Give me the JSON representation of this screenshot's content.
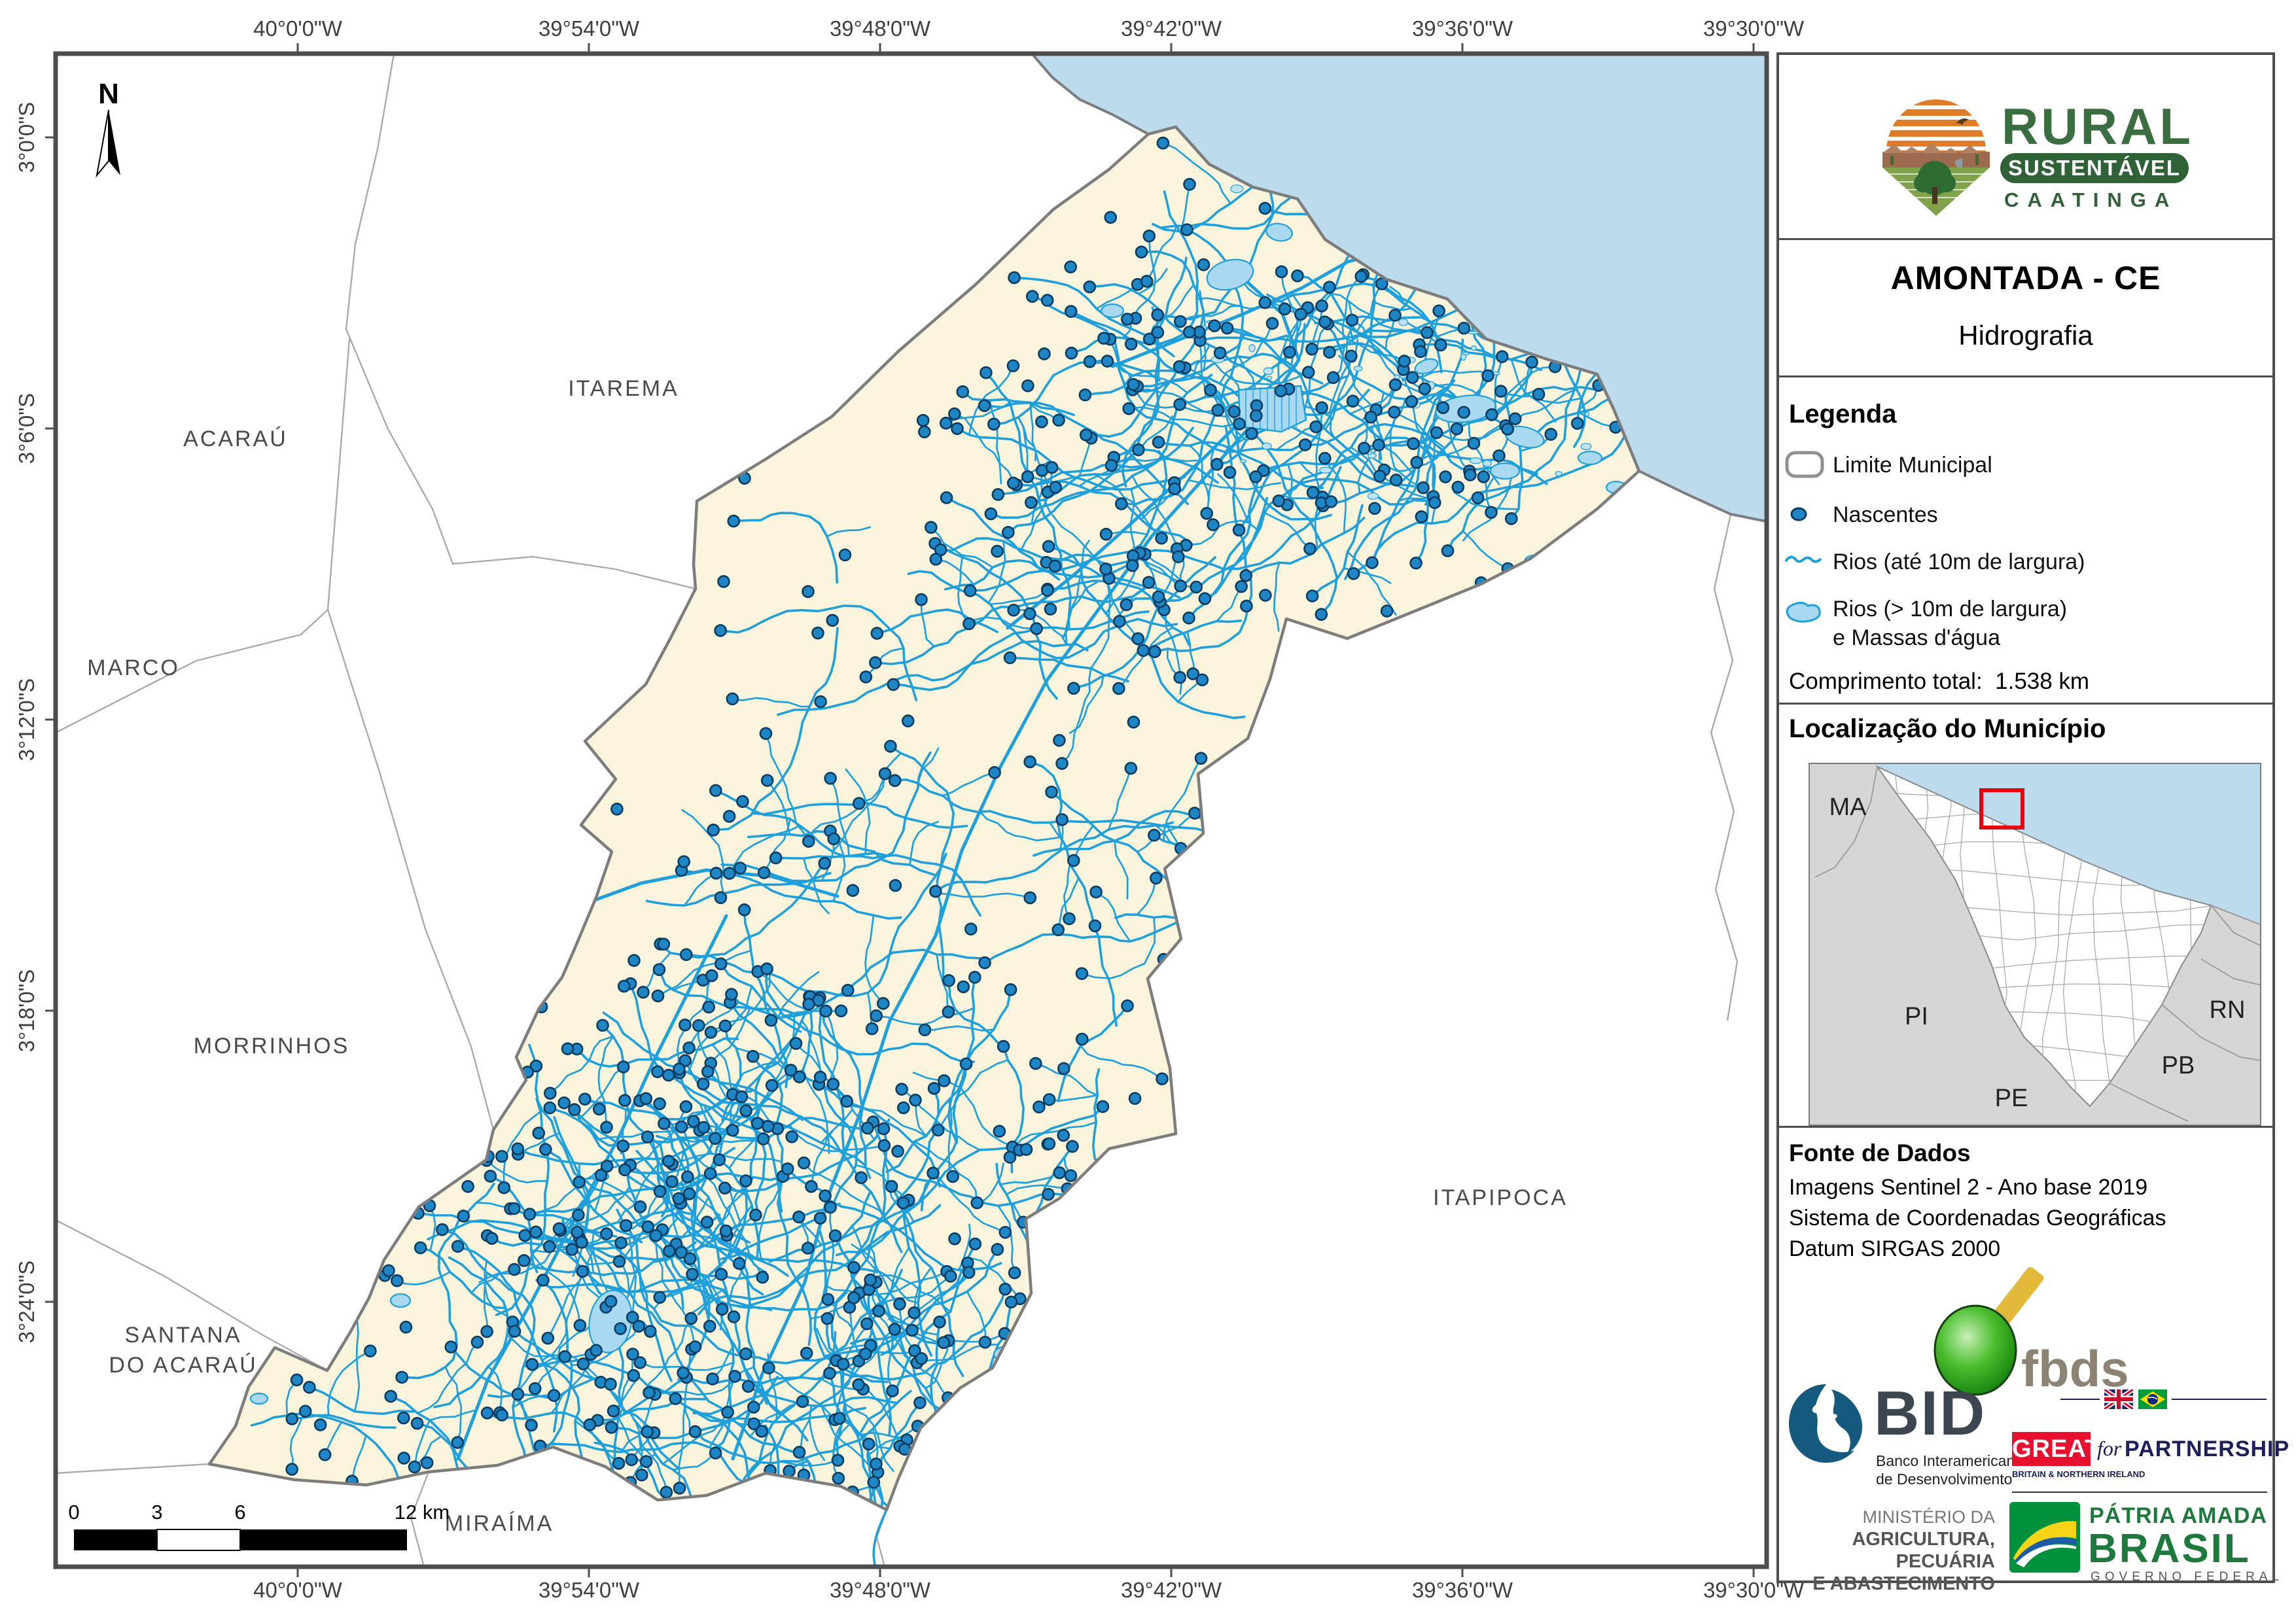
{
  "map": {
    "top_axis": [
      "40°0'0\"W",
      "39°54'0\"W",
      "39°48'0\"W",
      "39°42'0\"W",
      "39°36'0\"W",
      "39°30'0\"W"
    ],
    "bottom_axis": [
      "40°0'0\"W",
      "39°54'0\"W",
      "39°48'0\"W",
      "39°42'0\"W",
      "39°36'0\"W",
      "39°30'0\"W"
    ],
    "left_axis": [
      "3°0'0\"S",
      "3°6'0\"S",
      "3°12'0\"S",
      "3°18'0\"S",
      "3°24'0\"S"
    ],
    "north_label": "N",
    "neighbors": [
      "ACARAÚ",
      "ITAREMA",
      "MARCO",
      "MORRINHOS",
      "SANTANA",
      "DO ACARAÚ",
      "MIRAÍMA",
      "ITAPIPOCA"
    ],
    "scalebar_labels": [
      "0",
      "3",
      "6",
      "12 km"
    ]
  },
  "panel": {
    "logo": {
      "line1": "RURAL",
      "line2": "SUSTENTÁVEL",
      "line3": "CAATINGA"
    },
    "title": "AMONTADA - CE",
    "subtitle": "Hidrografia",
    "legend": {
      "title": "Legenda",
      "items": [
        {
          "icon": "municipal-boundary",
          "label": "Limite Municipal"
        },
        {
          "icon": "spring-dot",
          "label": "Nascentes"
        },
        {
          "icon": "river-line",
          "label": "Rios (até 10m de largura)"
        },
        {
          "icon": "water-body",
          "label": "Rios (> 10m de largura)",
          "label2": "e Massas d'água"
        }
      ],
      "total_label": "Comprimento total:",
      "total_value": "1.538 km"
    },
    "location": {
      "title": "Localização do Município",
      "states": [
        "MA",
        "PI",
        "RN",
        "PB",
        "PE"
      ]
    },
    "source": {
      "title": "Fonte de Dados",
      "lines": [
        "Imagens Sentinel 2 - Ano base 2019",
        "Sistema de Coordenadas Geográficas",
        "Datum SIRGAS 2000"
      ]
    },
    "logos": {
      "fbds": "fbds",
      "bid": {
        "name": "BID",
        "sub1": "Banco Interamericano",
        "sub2": "de Desenvolvimento"
      },
      "great": {
        "main": "GREAT",
        "sub": "BRITAIN & NORTHERN IRELAND",
        "for_word": "for",
        "partner": "PARTNERSHIP"
      },
      "ministry": [
        "MINISTÉRIO DA",
        "AGRICULTURA, PECUÁRIA",
        "E ABASTECIMENTO"
      ],
      "brasil": {
        "line1": "PÁTRIA AMADA",
        "line2": "BRASIL",
        "line3": "GOVERNO FEDERAL"
      }
    }
  },
  "colors": {
    "cream": "#FBF4DC",
    "ocean": "#BCDCEE",
    "river": "#1FA0DB",
    "water_fill": "#A9D9F1",
    "dot_fill": "#1F86C6",
    "dot_stroke": "#0B3B5E",
    "muni_stroke": "#7D7D7D",
    "frame": "#4D4D4D",
    "neighbor_line": "#ABABAB",
    "axis_text": "#3F3F3F",
    "label_text": "#4A4A4A",
    "red_box": "#E8000D",
    "great_red": "#E8112D",
    "navy": "#1B1F5E",
    "bid_blue": "#16597F",
    "bid_text": "#3C4650",
    "fbds_text": "#8D8373",
    "brasil_green": "#1E7A3C",
    "ministry_gray": "#5E5E5E",
    "inset_gray": "#D6D6D6",
    "logo_green": "#3A6E41",
    "pill_green": "#2F6236"
  }
}
